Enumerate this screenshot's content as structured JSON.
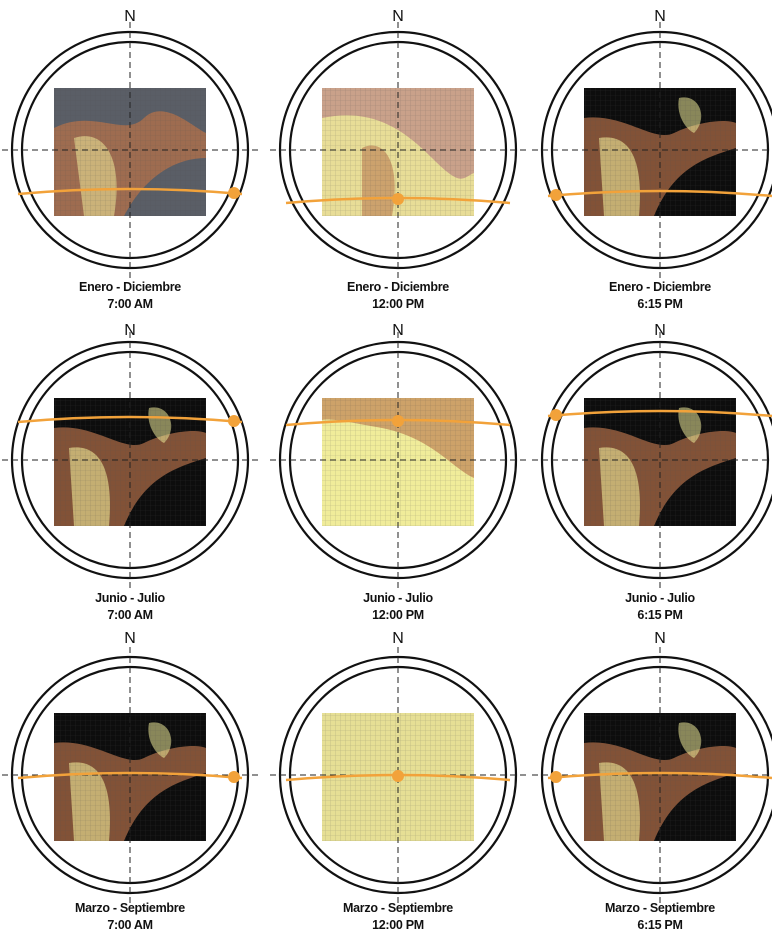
{
  "north_label": "N",
  "colors": {
    "ring": "#111111",
    "crosshair": "#222222",
    "sun": "#f2a23a",
    "shade_dark": "#0d0d0d",
    "shade_gray": "#5a5e66",
    "warm": "#b5714a",
    "light": "#f0ec9a"
  },
  "panels": [
    {
      "period": "Enero - Diciembre",
      "time": "7:00 AM",
      "scheme": "gray",
      "sun_side": "east"
    },
    {
      "period": "Enero - Diciembre",
      "time": "12:00 PM",
      "scheme": "tan",
      "sun_side": "center"
    },
    {
      "period": "Enero - Diciembre",
      "time": "6:15 PM",
      "scheme": "dark",
      "sun_side": "west"
    },
    {
      "period": "Junio - Julio",
      "time": "7:00 AM",
      "scheme": "dark",
      "sun_side": "east"
    },
    {
      "period": "Junio - Julio",
      "time": "12:00 PM",
      "scheme": "bright",
      "sun_side": "center"
    },
    {
      "period": "Junio - Julio",
      "time": "6:15 PM",
      "scheme": "dark",
      "sun_side": "west"
    },
    {
      "period": "Marzo - Septiembre",
      "time": "7:00 AM",
      "scheme": "dark",
      "sun_side": "east"
    },
    {
      "period": "Marzo - Septiembre",
      "time": "12:00 PM",
      "scheme": "light",
      "sun_side": "center"
    },
    {
      "period": "Marzo - Septiembre",
      "time": "6:15 PM",
      "scheme": "dark",
      "sun_side": "west"
    }
  ]
}
